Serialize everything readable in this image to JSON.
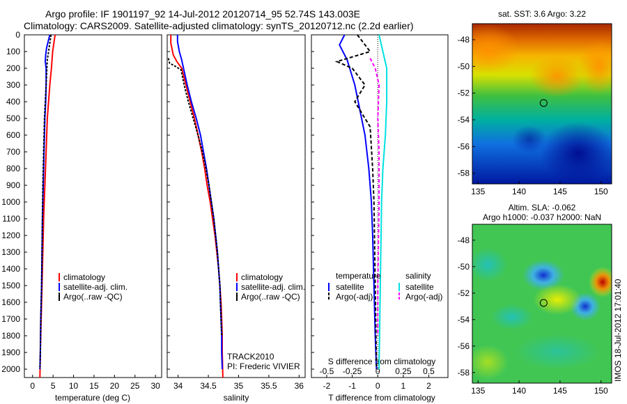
{
  "header": {
    "line1": "Argo profile: IF 1901197_92 14-Jul-2012 20120714_95 52.74S 143.003E",
    "line2": "Climatology: CARS2009. Satellite-adjusted climatology: synTS_20120712.nc (2.2d earlier)"
  },
  "depth_ticks": [
    "0",
    "100",
    "200",
    "300",
    "400",
    "500",
    "600",
    "700",
    "800",
    "900",
    "1000",
    "1100",
    "1200",
    "1300",
    "1400",
    "1500",
    "1600",
    "1700",
    "1800",
    "1900",
    "2000"
  ],
  "colors": {
    "climatology": "#ff0000",
    "satellite": "#0000ff",
    "argo": "#000000",
    "sal_satellite": "#00e0e0",
    "sal_argo": "#ff00ff"
  },
  "legend_common": {
    "climatology": "climatology",
    "satellite_adj": "satellite-adj. clim.",
    "argo": "Argo(..raw -QC)"
  },
  "diff_legend": {
    "temperature": "temperature",
    "salinity": "salinity",
    "satellite": "satellite",
    "argo_adj": "Argo(-adj)"
  },
  "track_text": {
    "line1": "TRACK2010",
    "line2": "PI: Frederic VIVIER"
  },
  "chart_data": [
    {
      "type": "line",
      "xlabel": "temperature (deg C)",
      "x_ticks": [
        "0",
        "5",
        "10",
        "15",
        "20",
        "25",
        "30"
      ],
      "xlim": [
        -2,
        31.5
      ],
      "ylim": [
        2050,
        0
      ],
      "series": [
        {
          "name": "climatology",
          "color": "#ff0000",
          "points": [
            [
              5.5,
              0
            ],
            [
              5.2,
              50
            ],
            [
              4.9,
              100
            ],
            [
              4.6,
              200
            ],
            [
              4.2,
              300
            ],
            [
              3.9,
              400
            ],
            [
              3.6,
              500
            ],
            [
              3.3,
              700
            ],
            [
              3.0,
              900
            ],
            [
              2.7,
              1100
            ],
            [
              2.5,
              1300
            ],
            [
              2.3,
              1500
            ],
            [
              2.1,
              1700
            ],
            [
              1.9,
              1900
            ],
            [
              1.8,
              2050
            ]
          ]
        },
        {
          "name": "satellite-adj. clim.",
          "color": "#0000ff",
          "points": [
            [
              4.2,
              0
            ],
            [
              3.8,
              40
            ],
            [
              3.4,
              80
            ],
            [
              3.2,
              120
            ],
            [
              3.1,
              160
            ],
            [
              3.3,
              200
            ],
            [
              3.3,
              300
            ],
            [
              3.2,
              400
            ],
            [
              3.0,
              500
            ],
            [
              2.9,
              600
            ],
            [
              2.8,
              700
            ],
            [
              2.6,
              900
            ],
            [
              2.4,
              1100
            ],
            [
              2.3,
              1300
            ],
            [
              2.2,
              1500
            ],
            [
              2.0,
              1700
            ],
            [
              1.9,
              1900
            ],
            [
              1.8,
              2000
            ]
          ]
        },
        {
          "name": "Argo(..raw -QC)",
          "color": "#000000",
          "points": [
            [
              4.5,
              0
            ],
            [
              4.2,
              50
            ],
            [
              3.9,
              100
            ],
            [
              3.6,
              150
            ],
            [
              3.5,
              200
            ],
            [
              3.3,
              300
            ],
            [
              3.1,
              400
            ],
            [
              2.9,
              500
            ],
            [
              2.7,
              700
            ],
            [
              2.5,
              900
            ],
            [
              2.4,
              1100
            ],
            [
              2.3,
              1300
            ],
            [
              2.2,
              1500
            ],
            [
              2.0,
              1700
            ],
            [
              1.9,
              1900
            ],
            [
              1.8,
              2000
            ]
          ]
        }
      ]
    },
    {
      "type": "line",
      "xlabel": "salinity",
      "x_ticks": [
        "34",
        "34.5",
        "35",
        "35.5",
        "36"
      ],
      "xlim": [
        33.82,
        36.1
      ],
      "ylim": [
        2050,
        0
      ],
      "series": [
        {
          "name": "climatology",
          "color": "#ff0000",
          "points": [
            [
              33.88,
              0
            ],
            [
              33.88,
              50
            ],
            [
              33.92,
              120
            ],
            [
              33.98,
              160
            ],
            [
              34.06,
              200
            ],
            [
              34.13,
              300
            ],
            [
              34.2,
              400
            ],
            [
              34.27,
              500
            ],
            [
              34.33,
              600
            ],
            [
              34.39,
              700
            ],
            [
              34.44,
              800
            ],
            [
              34.48,
              900
            ],
            [
              34.53,
              1000
            ],
            [
              34.57,
              1100
            ],
            [
              34.61,
              1200
            ],
            [
              34.64,
              1300
            ],
            [
              34.67,
              1400
            ],
            [
              34.69,
              1500
            ],
            [
              34.71,
              1600
            ],
            [
              34.72,
              1700
            ],
            [
              34.73,
              1800
            ],
            [
              34.73,
              1900
            ],
            [
              34.74,
              2050
            ]
          ]
        },
        {
          "name": "satellite-adj. clim.",
          "color": "#0000ff",
          "points": [
            [
              33.99,
              0
            ],
            [
              33.99,
              40
            ],
            [
              34.02,
              100
            ],
            [
              34.06,
              150
            ],
            [
              34.09,
              200
            ],
            [
              34.15,
              300
            ],
            [
              34.22,
              400
            ],
            [
              34.3,
              500
            ],
            [
              34.37,
              600
            ],
            [
              34.42,
              700
            ],
            [
              34.47,
              800
            ],
            [
              34.51,
              900
            ],
            [
              34.55,
              1000
            ],
            [
              34.59,
              1100
            ],
            [
              34.62,
              1200
            ],
            [
              34.65,
              1300
            ],
            [
              34.67,
              1400
            ],
            [
              34.69,
              1500
            ],
            [
              34.7,
              1600
            ],
            [
              34.71,
              1700
            ],
            [
              34.72,
              1800
            ],
            [
              34.72,
              1900
            ],
            [
              34.73,
              2000
            ]
          ]
        },
        {
          "name": "Argo(..raw -QC)",
          "color": "#000000",
          "points": [
            [
              33.84,
              140
            ],
            [
              33.86,
              170
            ],
            [
              33.94,
              185
            ],
            [
              34.05,
              210
            ],
            [
              34.1,
              300
            ],
            [
              34.17,
              400
            ],
            [
              34.25,
              500
            ],
            [
              34.33,
              600
            ],
            [
              34.4,
              700
            ],
            [
              34.46,
              800
            ],
            [
              34.51,
              900
            ],
            [
              34.55,
              1000
            ],
            [
              34.59,
              1100
            ],
            [
              34.62,
              1200
            ],
            [
              34.65,
              1300
            ],
            [
              34.67,
              1400
            ],
            [
              34.69,
              1500
            ],
            [
              34.7,
              1600
            ],
            [
              34.71,
              1700
            ],
            [
              34.72,
              1800
            ]
          ]
        }
      ]
    },
    {
      "type": "line",
      "xlabel_bottom": "T difference from climatology",
      "x_ticks_bottom": [
        "-2",
        "-1",
        "0",
        "1",
        "2"
      ],
      "xlabel_top": "S difference from climatology",
      "x_ticks_top": [
        "-0.5",
        "-0.25",
        "0",
        "0.25",
        "0.5"
      ],
      "xlim": [
        -2.6,
        2.75
      ],
      "ylim": [
        2050,
        0
      ],
      "series": [
        {
          "name": "temperature satellite",
          "color": "#0000ff",
          "points": [
            [
              -1.3,
              0
            ],
            [
              -1.5,
              60
            ],
            [
              -1.2,
              150
            ],
            [
              -0.9,
              300
            ],
            [
              -0.7,
              450
            ],
            [
              -0.5,
              600
            ],
            [
              -0.35,
              800
            ],
            [
              -0.25,
              1000
            ],
            [
              -0.2,
              1200
            ],
            [
              -0.15,
              1500
            ],
            [
              -0.1,
              1800
            ],
            [
              -0.05,
              2000
            ]
          ]
        },
        {
          "name": "temperature Argo(-adj)",
          "color": "#000000",
          "points": [
            [
              -0.8,
              0
            ],
            [
              -0.3,
              100
            ],
            [
              -1.6,
              160
            ],
            [
              -1.0,
              200
            ],
            [
              -0.5,
              300
            ],
            [
              -0.9,
              400
            ],
            [
              -0.3,
              550
            ],
            [
              -0.2,
              800
            ],
            [
              -0.15,
              1000
            ],
            [
              -0.1,
              1500
            ],
            [
              -0.05,
              2000
            ]
          ]
        },
        {
          "name": "salinity satellite",
          "color": "#00e0e0",
          "points": [
            [
              0.05,
              0
            ],
            [
              0.2,
              100
            ],
            [
              0.35,
              200
            ],
            [
              0.35,
              400
            ],
            [
              0.3,
              600
            ],
            [
              0.2,
              800
            ],
            [
              0.15,
              1000
            ],
            [
              0.1,
              1500
            ],
            [
              0.05,
              2000
            ]
          ]
        },
        {
          "name": "salinity Argo(-adj)",
          "color": "#ff00ff",
          "points": [
            [
              -0.3,
              140
            ],
            [
              -0.1,
              200
            ],
            [
              0.05,
              300
            ],
            [
              0.0,
              500
            ],
            [
              0.05,
              700
            ],
            [
              0.05,
              1000
            ],
            [
              0.0,
              1500
            ],
            [
              0.0,
              1800
            ]
          ]
        }
      ]
    },
    {
      "type": "heatmap",
      "title": "sat. SST: 3.6 Argo: 3.22",
      "x_ticks": [
        "135",
        "140",
        "145",
        "150"
      ],
      "y_ticks": [
        "-48",
        "-50",
        "-52",
        "-54",
        "-56",
        "-58"
      ],
      "xlim": [
        134.3,
        151.3
      ],
      "ylim": [
        -58.8,
        -46.8
      ],
      "argo_position": [
        143.0,
        -52.74
      ]
    },
    {
      "type": "heatmap",
      "title_line1": "Altim. SLA: -0.062",
      "title_line2": "Argo h1000: -0.037 h2000: NaN",
      "x_ticks": [
        "135",
        "140",
        "145",
        "150"
      ],
      "y_ticks": [
        "-48",
        "-50",
        "-52",
        "-54",
        "-56",
        "-58"
      ],
      "xlim": [
        134.3,
        151.3
      ],
      "ylim": [
        -58.8,
        -46.8
      ],
      "argo_position": [
        143.0,
        -52.74
      ]
    }
  ],
  "side_stamp": "IMOS 18-Jul-2012 17:01:40"
}
